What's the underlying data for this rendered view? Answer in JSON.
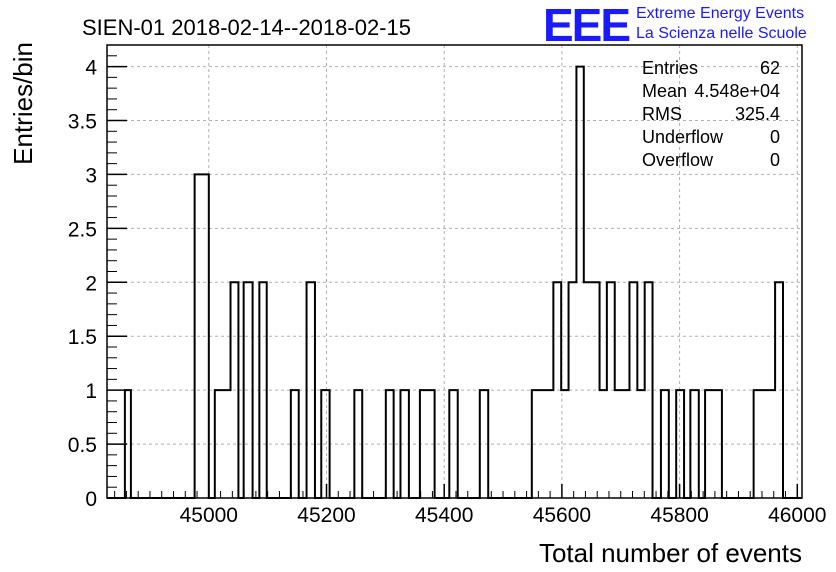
{
  "title": "SIEN-01 2018-02-14--2018-02-15",
  "logo": {
    "mark": "EEE",
    "line1": "Extreme Energy Events",
    "line2": "La Scienza nelle Scuole",
    "color": "#1a1aff"
  },
  "stats": [
    {
      "label": "Entries",
      "value": "62"
    },
    {
      "label": "Mean",
      "value": "4.548e+04"
    },
    {
      "label": "RMS",
      "value": "325.4"
    },
    {
      "label": "Underflow",
      "value": "0"
    },
    {
      "label": "Overflow",
      "value": "0"
    }
  ],
  "chart_data": {
    "type": "histogram",
    "xlabel": "Total number of events",
    "ylabel": "Entries/bin",
    "xlim": [
      44827,
      46008
    ],
    "ylim": [
      0,
      4.2
    ],
    "xticks": [
      45000,
      45200,
      45400,
      45600,
      45800,
      46000
    ],
    "yticks": [
      0,
      0.5,
      1,
      1.5,
      2,
      2.5,
      3,
      3.5,
      4
    ],
    "xtick_labels": [
      "45000",
      "45200",
      "45400",
      "45600",
      "45800",
      "46000"
    ],
    "ytick_labels": [
      "0",
      "0.5",
      "1",
      "1.5",
      "2",
      "2.5",
      "3",
      "3.5",
      "4"
    ],
    "grid": true,
    "bins": [
      {
        "x0": 44857.4,
        "x1": 44867.6,
        "count": 1
      },
      {
        "x0": 44975.9,
        "x1": 45000.0,
        "count": 3
      },
      {
        "x0": 45010.2,
        "x1": 45036.9,
        "count": 1
      },
      {
        "x0": 45036.9,
        "x1": 45050.3,
        "count": 2
      },
      {
        "x0": 45059.2,
        "x1": 45074.4,
        "count": 2
      },
      {
        "x0": 45085.9,
        "x1": 45098.4,
        "count": 2
      },
      {
        "x0": 45139.4,
        "x1": 45152.8,
        "count": 1
      },
      {
        "x0": 45166.1,
        "x1": 45180.4,
        "count": 2
      },
      {
        "x0": 45191.1,
        "x1": 45205.3,
        "count": 1
      },
      {
        "x0": 45247.3,
        "x1": 45260.7,
        "count": 1
      },
      {
        "x0": 45300.8,
        "x1": 45314.1,
        "count": 1
      },
      {
        "x0": 45325.7,
        "x1": 45340.0,
        "count": 1
      },
      {
        "x0": 45358.7,
        "x1": 45383.7,
        "count": 1
      },
      {
        "x0": 45408.7,
        "x1": 45423.0,
        "count": 1
      },
      {
        "x0": 45460.5,
        "x1": 45474.8,
        "count": 1
      },
      {
        "x0": 45548.9,
        "x1": 45585.5,
        "count": 1
      },
      {
        "x0": 45585.5,
        "x1": 45598.8,
        "count": 2
      },
      {
        "x0": 45598.8,
        "x1": 45611.3,
        "count": 1
      },
      {
        "x0": 45611.3,
        "x1": 45624.7,
        "count": 2
      },
      {
        "x0": 45624.7,
        "x1": 45637.2,
        "count": 4
      },
      {
        "x0": 45637.2,
        "x1": 45664.0,
        "count": 2
      },
      {
        "x0": 45664.0,
        "x1": 45676.4,
        "count": 1
      },
      {
        "x0": 45676.4,
        "x1": 45689.8,
        "count": 2
      },
      {
        "x0": 45689.8,
        "x1": 45714.8,
        "count": 1
      },
      {
        "x0": 45714.8,
        "x1": 45728.2,
        "count": 2
      },
      {
        "x0": 45728.2,
        "x1": 45740.7,
        "count": 1
      },
      {
        "x0": 45740.7,
        "x1": 45754.0,
        "count": 2
      },
      {
        "x0": 45768.3,
        "x1": 45781.7,
        "count": 1
      },
      {
        "x0": 45794.2,
        "x1": 45807.6,
        "count": 1
      },
      {
        "x0": 45818.3,
        "x1": 45832.6,
        "count": 1
      },
      {
        "x0": 45843.3,
        "x1": 45871.9,
        "count": 1
      },
      {
        "x0": 45925.8,
        "x1": 45962.3,
        "count": 1
      },
      {
        "x0": 45962.3,
        "x1": 45975.7,
        "count": 2
      }
    ]
  }
}
